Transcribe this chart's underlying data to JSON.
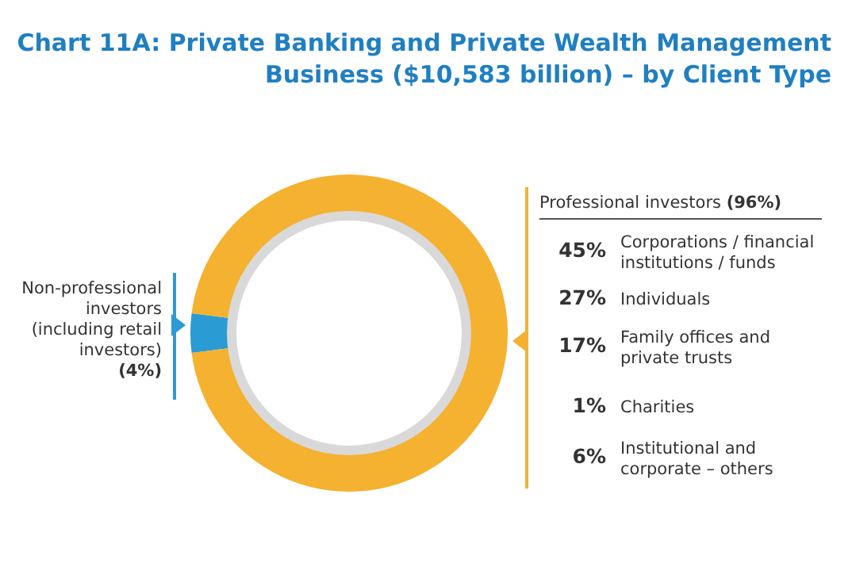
{
  "chart_data": [
    {
      "type": "donut",
      "title": "Chart 11A: Private Banking and Private Wealth Management Business ($10,583 billion) – by Client Type",
      "categories": [
        "Non-professional investors (including retail investors)",
        "Professional investors"
      ],
      "values": [
        4,
        96
      ],
      "value_labels": [
        "(4%)",
        "(96%)"
      ],
      "colors": [
        "#2b9bd3",
        "#f5b130"
      ]
    },
    {
      "type": "other",
      "categories": [
        "Corporations / financial institutions / funds",
        "Individuals",
        "Family offices and private trusts",
        "Charities",
        "Institutional and corporate – others"
      ],
      "value_labels": [
        "45%",
        "27%",
        "17%",
        "1%",
        "6%"
      ]
    }
  ]
}
